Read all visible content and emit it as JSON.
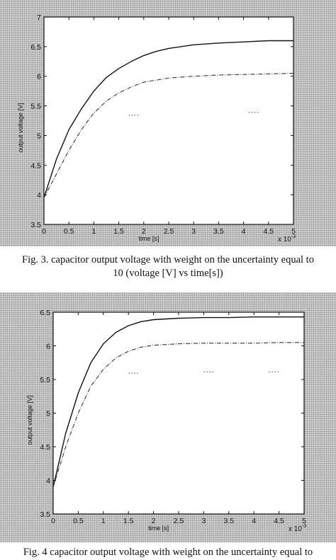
{
  "figures": [
    {
      "id": "fig3",
      "caption_line1": "Fig. 3. capacitor output voltage with weight on the uncertainty equal to",
      "caption_line2": "10 (voltage [V] vs time[s])"
    },
    {
      "id": "fig4",
      "caption_line1": "Fig. 4 capacitor output voltage with weight on the uncertainty equal to"
    }
  ],
  "chart_data": [
    {
      "type": "line",
      "figure": "fig3",
      "xlabel": "time [s]",
      "ylabel": "output voltage [V]",
      "x_exponent_label": "x 10",
      "x_exponent_power": "-3",
      "xlim": [
        0,
        5
      ],
      "ylim": [
        3.5,
        7
      ],
      "x_ticks": [
        "0",
        "0.5",
        "1",
        "1.5",
        "2",
        "2.5",
        "3",
        "3.5",
        "4",
        "4.5",
        "5"
      ],
      "y_ticks": [
        "3.5",
        "4",
        "4.5",
        "5",
        "5.5",
        "6",
        "6.5",
        "7"
      ],
      "grid": false,
      "series": [
        {
          "x": [
            0,
            0.25,
            0.5,
            0.75,
            1.0,
            1.25,
            1.5,
            1.75,
            2.0,
            2.25,
            2.5,
            3.0,
            3.5,
            4.0,
            4.5,
            5.0
          ],
          "y": [
            3.95,
            4.6,
            5.1,
            5.45,
            5.75,
            5.98,
            6.13,
            6.25,
            6.35,
            6.42,
            6.47,
            6.53,
            6.56,
            6.58,
            6.6,
            6.6
          ],
          "color": "#111111",
          "style": "solid"
        },
        {
          "x": [
            0,
            0.25,
            0.5,
            0.75,
            1.0,
            1.25,
            1.5,
            1.75,
            2.0,
            2.5,
            3.0,
            3.5,
            4.0,
            4.5,
            5.0
          ],
          "y": [
            3.95,
            4.35,
            4.75,
            5.1,
            5.38,
            5.58,
            5.72,
            5.82,
            5.9,
            5.97,
            6.0,
            6.02,
            6.03,
            6.04,
            6.05
          ],
          "color": "#333333",
          "style": "dashed"
        }
      ],
      "annotations": [
        {
          "x": 1.7,
          "y": 5.35,
          "kind": "dot-fragment"
        },
        {
          "x": 4.1,
          "y": 5.4,
          "kind": "dot-fragment"
        }
      ]
    },
    {
      "type": "line",
      "figure": "fig4",
      "xlabel": "time [s]",
      "ylabel": "output voltage [V]",
      "x_exponent_label": "x 10",
      "x_exponent_power": "-3",
      "xlim": [
        0,
        5
      ],
      "ylim": [
        3.5,
        6.5
      ],
      "x_ticks": [
        "0",
        "0.5",
        "1",
        "1.5",
        "2",
        "2.5",
        "3",
        "3.5",
        "4",
        "4.5",
        "5"
      ],
      "y_ticks": [
        "3.5",
        "4",
        "4.5",
        "5",
        "5.5",
        "6",
        "6.5"
      ],
      "grid": false,
      "series": [
        {
          "x": [
            0,
            0.25,
            0.5,
            0.75,
            1.0,
            1.25,
            1.5,
            1.75,
            2.0,
            2.5,
            3.0,
            3.5,
            4.0,
            4.5,
            5.0
          ],
          "y": [
            3.9,
            4.7,
            5.3,
            5.75,
            6.03,
            6.2,
            6.3,
            6.36,
            6.39,
            6.41,
            6.42,
            6.42,
            6.43,
            6.43,
            6.43
          ],
          "color": "#111111",
          "style": "solid"
        },
        {
          "x": [
            0,
            0.25,
            0.5,
            0.75,
            1.0,
            1.25,
            1.5,
            1.75,
            2.0,
            2.5,
            3.0,
            3.5,
            4.0,
            4.5,
            5.0
          ],
          "y": [
            3.9,
            4.5,
            5.0,
            5.4,
            5.65,
            5.82,
            5.92,
            5.98,
            6.01,
            6.03,
            6.04,
            6.04,
            6.04,
            6.05,
            6.05
          ],
          "color": "#333333",
          "style": "dashed"
        }
      ],
      "annotations": [
        {
          "x": 1.5,
          "y": 5.6,
          "kind": "dot-fragment"
        },
        {
          "x": 3.0,
          "y": 5.62,
          "kind": "dot-fragment"
        },
        {
          "x": 4.3,
          "y": 5.62,
          "kind": "dot-fragment"
        }
      ]
    }
  ]
}
